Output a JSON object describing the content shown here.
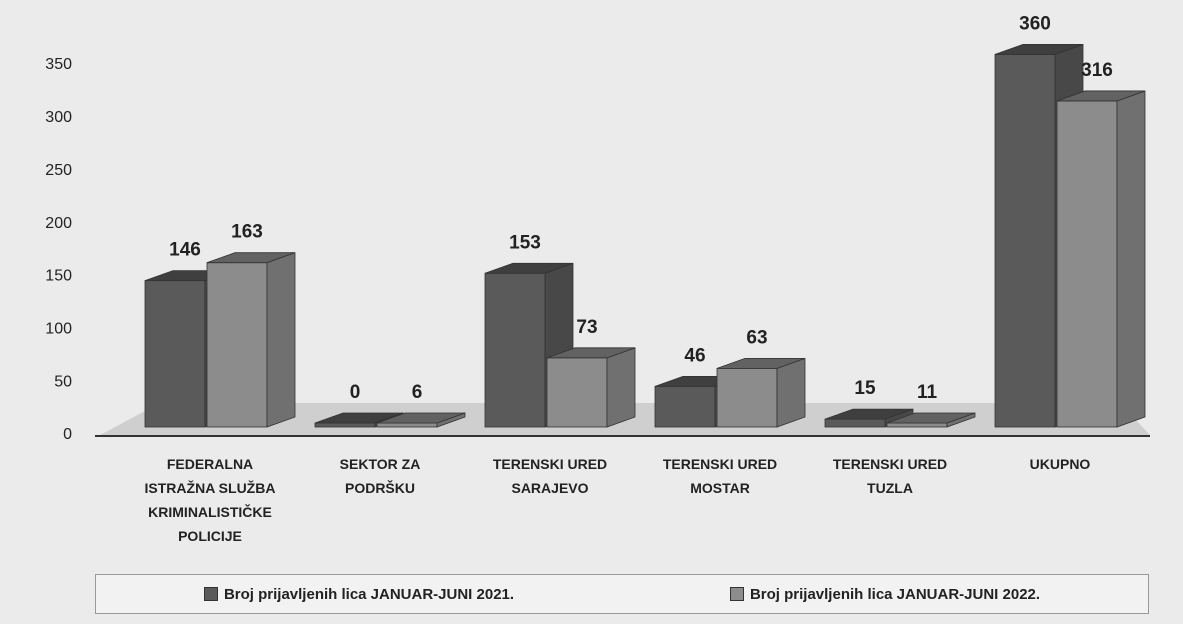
{
  "chart_data": {
    "type": "bar3d",
    "categories": [
      "FEDERALNA ISTRAŽNA SLUŽBA KRIMINALISTIČKE POLICIJE",
      "SEKTOR ZA PODRŠKU",
      "TERENSKI URED SARAJEVO",
      "TERENSKI URED MOSTAR",
      "TERENSKI URED TUZLA",
      "UKUPNO"
    ],
    "series": [
      {
        "name": "Broj prijavljenih lica JANUAR-JUNI 2021.",
        "color": "#5a5a5a",
        "values": [
          146,
          0,
          153,
          46,
          15,
          360
        ]
      },
      {
        "name": "Broj prijavljenih lica JANUAR-JUNI  2022.",
        "color": "#8c8c8c",
        "values": [
          163,
          6,
          73,
          63,
          11,
          316
        ]
      }
    ],
    "ylim": [
      0,
      350
    ],
    "yticks": [
      0,
      50,
      100,
      150,
      200,
      250,
      300,
      350
    ],
    "legend": "bottom"
  }
}
